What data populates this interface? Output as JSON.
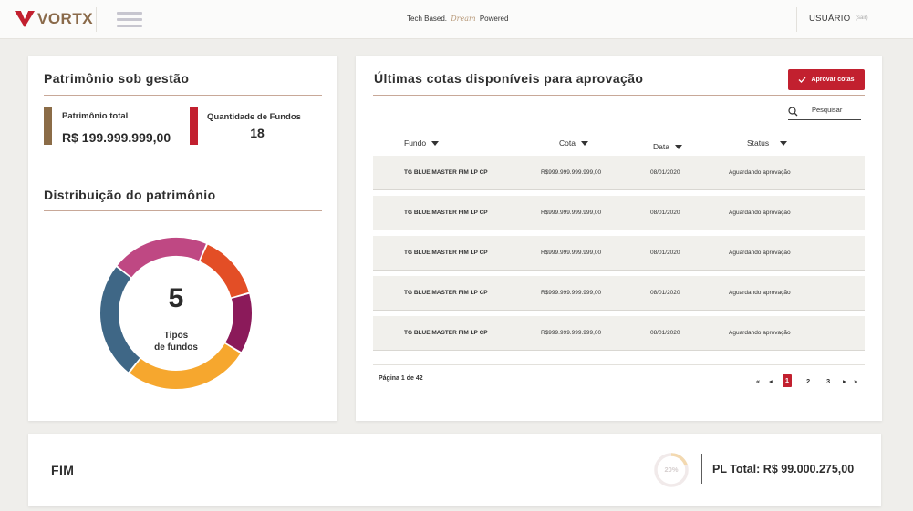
{
  "header": {
    "brand": "VORTX",
    "tagline_before": "Tech Based.",
    "tagline_script": "Dream",
    "tagline_after": "Powered",
    "user": "USUÁRIO",
    "exit": "(sair)"
  },
  "patrimonio": {
    "title": "Patrimônio sob gestão",
    "total_label": "Patrimônio total",
    "total_value": "R$ 199.999.999,00",
    "funds_label": "Quantidade de Fundos",
    "funds_value": "18",
    "total_color": "#8b6c47",
    "funds_color": "#c2202f"
  },
  "distribution": {
    "title": "Distribuição do patrimônio",
    "center_number": "5",
    "center_label_line1": "Tipos",
    "center_label_line2": "de fundos",
    "segments": [
      {
        "color": "#e34e26",
        "fraction": 0.14
      },
      {
        "color": "#8b1a5a",
        "fraction": 0.13
      },
      {
        "color": "#f6a72e",
        "fraction": 0.27
      },
      {
        "color": "#3f6786",
        "fraction": 0.25
      },
      {
        "color": "#bf4883",
        "fraction": 0.21
      }
    ]
  },
  "quotas": {
    "title": "Últimas cotas disponíveis para aprovação",
    "approve_button": "Aprovar cotas",
    "search_placeholder": "Pesquisar",
    "columns": [
      "Fundo",
      "Cota",
      "Data",
      "Status"
    ],
    "rows": [
      {
        "fund": "TG BLUE MASTER FIM LP CP",
        "quota": "R$999.999.999.999,00",
        "date": "08/01/2020",
        "status": "Aguardando aprovação"
      },
      {
        "fund": "TG BLUE MASTER FIM LP CP",
        "quota": "R$999.999.999.999,00",
        "date": "08/01/2020",
        "status": "Aguardando aprovação"
      },
      {
        "fund": "TG BLUE MASTER FIM LP CP",
        "quota": "R$999.999.999.999,00",
        "date": "08/01/2020",
        "status": "Aguardando aprovação"
      },
      {
        "fund": "TG BLUE MASTER FIM LP CP",
        "quota": "R$999.999.999.999,00",
        "date": "08/01/2020",
        "status": "Aguardando aprovação"
      },
      {
        "fund": "TG BLUE MASTER FIM LP CP",
        "quota": "R$999.999.999.999,00",
        "date": "08/01/2020",
        "status": "Aguardando aprovação"
      }
    ],
    "page_info": "Página 1 de 42",
    "pages": [
      "1",
      "2",
      "3"
    ],
    "current_page": "1"
  },
  "fim": {
    "title": "FIM",
    "percent": "20%",
    "percent_value": 0.2,
    "pl_total": "PL Total: R$ 99.000.275,00"
  }
}
